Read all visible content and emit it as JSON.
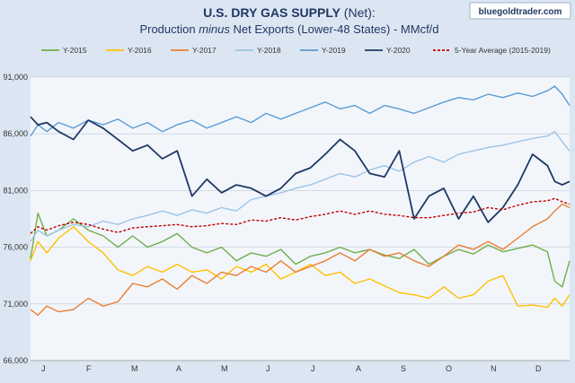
{
  "chart_data": {
    "type": "line",
    "title": "U.S. DRY GAS SUPPLY",
    "title_suffix": " (Net):",
    "subtitle_pre": "Production ",
    "subtitle_em": "minus",
    "subtitle_post": " Net Exports (Lower-48 States) - MMcf/d",
    "brand": "bluegoldtrader.com",
    "ylim": [
      66000,
      91000
    ],
    "yticks": [
      "66,000",
      "71,000",
      "76,000",
      "81,000",
      "86,000",
      "91,000"
    ],
    "ytick_values": [
      66000,
      71000,
      76000,
      81000,
      86000,
      91000
    ],
    "xlabels": [
      "J",
      "F",
      "M",
      "A",
      "M",
      "J",
      "J",
      "A",
      "S",
      "O",
      "N",
      "D"
    ],
    "xlim": [
      1,
      365
    ],
    "grid": true,
    "legend_position": "top",
    "series": [
      {
        "name": "Y-2015",
        "color": "#70ad47",
        "width": 1.4,
        "dash": "",
        "x": [
          1,
          6,
          12,
          20,
          30,
          40,
          50,
          60,
          70,
          80,
          90,
          100,
          110,
          120,
          130,
          140,
          150,
          160,
          170,
          180,
          190,
          200,
          210,
          220,
          230,
          240,
          250,
          260,
          270,
          280,
          290,
          300,
          310,
          320,
          330,
          340,
          350,
          355,
          360,
          365
        ],
        "y": [
          75000,
          79000,
          77000,
          77500,
          78500,
          77500,
          77000,
          76000,
          77000,
          76000,
          76500,
          77200,
          76000,
          75500,
          76000,
          74800,
          75500,
          75200,
          75800,
          74500,
          75200,
          75500,
          76000,
          75500,
          75800,
          75300,
          75000,
          75800,
          74500,
          75200,
          75800,
          75400,
          76200,
          75600,
          75900,
          76200,
          75600,
          73000,
          72500,
          74800
        ]
      },
      {
        "name": "Y-2016",
        "color": "#ffc000",
        "width": 1.4,
        "dash": "",
        "x": [
          1,
          6,
          12,
          20,
          30,
          40,
          50,
          60,
          70,
          80,
          90,
          100,
          110,
          120,
          130,
          140,
          150,
          160,
          170,
          180,
          190,
          200,
          210,
          220,
          230,
          240,
          250,
          260,
          270,
          280,
          290,
          300,
          310,
          320,
          330,
          340,
          350,
          355,
          360,
          365
        ],
        "y": [
          74800,
          76500,
          75500,
          76800,
          77800,
          76500,
          75500,
          74000,
          73500,
          74300,
          73800,
          74500,
          73800,
          74000,
          73200,
          74300,
          73800,
          74500,
          73200,
          73800,
          74500,
          73500,
          73800,
          72800,
          73200,
          72600,
          72000,
          71800,
          71500,
          72500,
          71500,
          71800,
          73000,
          73500,
          70800,
          70900,
          70700,
          71500,
          70800,
          71800
        ]
      },
      {
        "name": "Y-2017",
        "color": "#ed7d31",
        "width": 1.4,
        "dash": "",
        "x": [
          1,
          6,
          12,
          20,
          30,
          40,
          50,
          60,
          70,
          80,
          90,
          100,
          110,
          120,
          130,
          140,
          150,
          160,
          170,
          180,
          190,
          200,
          210,
          220,
          230,
          240,
          250,
          260,
          270,
          280,
          290,
          300,
          310,
          320,
          330,
          340,
          350,
          355,
          360,
          365
        ],
        "y": [
          70500,
          70000,
          70800,
          70300,
          70500,
          71500,
          70800,
          71200,
          72800,
          72500,
          73200,
          72300,
          73500,
          72800,
          73800,
          73500,
          74300,
          73800,
          74800,
          73800,
          74300,
          74800,
          75500,
          74800,
          75800,
          75200,
          75500,
          74800,
          74300,
          75200,
          76200,
          75800,
          76500,
          75800,
          76800,
          77800,
          78500,
          79200,
          79800,
          79500
        ]
      },
      {
        "name": "Y-2018",
        "color": "#9dc3e6",
        "width": 1.4,
        "dash": "",
        "x": [
          1,
          6,
          12,
          20,
          30,
          40,
          50,
          60,
          70,
          80,
          90,
          100,
          110,
          120,
          130,
          140,
          150,
          160,
          170,
          180,
          190,
          200,
          210,
          220,
          230,
          240,
          250,
          260,
          270,
          280,
          290,
          300,
          310,
          320,
          330,
          340,
          350,
          355,
          360,
          365
        ],
        "y": [
          76500,
          77500,
          77000,
          77500,
          78000,
          77800,
          78300,
          78000,
          78500,
          78800,
          79200,
          78800,
          79300,
          79000,
          79500,
          79200,
          80200,
          80500,
          80800,
          81200,
          81500,
          82000,
          82500,
          82200,
          82800,
          83200,
          82700,
          83500,
          84000,
          83500,
          84200,
          84500,
          84800,
          85000,
          85300,
          85600,
          85800,
          86200,
          85300,
          84500
        ]
      },
      {
        "name": "Y-2019",
        "color": "#5b9bd5",
        "width": 1.4,
        "dash": "",
        "x": [
          1,
          6,
          12,
          20,
          30,
          40,
          50,
          60,
          70,
          80,
          90,
          100,
          110,
          120,
          130,
          140,
          150,
          160,
          170,
          180,
          190,
          200,
          210,
          220,
          230,
          240,
          250,
          260,
          270,
          280,
          290,
          300,
          310,
          320,
          330,
          340,
          350,
          355,
          360,
          365
        ],
        "y": [
          85800,
          86800,
          86200,
          87000,
          86500,
          87200,
          86800,
          87300,
          86500,
          87000,
          86200,
          86800,
          87200,
          86500,
          87000,
          87500,
          87000,
          87800,
          87300,
          87800,
          88300,
          88800,
          88200,
          88500,
          87800,
          88500,
          88200,
          87800,
          88300,
          88800,
          89200,
          89000,
          89500,
          89200,
          89600,
          89300,
          89800,
          90200,
          89500,
          88500
        ]
      },
      {
        "name": "Y-2020",
        "color": "#1f3864",
        "width": 1.8,
        "dash": "",
        "x": [
          1,
          6,
          12,
          20,
          30,
          40,
          50,
          60,
          70,
          80,
          90,
          100,
          110,
          120,
          130,
          140,
          150,
          160,
          170,
          180,
          190,
          200,
          210,
          220,
          230,
          240,
          250,
          260,
          270,
          280,
          290,
          300,
          310,
          320,
          330,
          340,
          350,
          355,
          360,
          365
        ],
        "y": [
          87500,
          86800,
          87000,
          86200,
          85500,
          87200,
          86500,
          85500,
          84500,
          85000,
          83800,
          84500,
          80500,
          82000,
          80800,
          81500,
          81200,
          80500,
          81200,
          82500,
          83000,
          84200,
          85500,
          84500,
          82500,
          82200,
          84500,
          78500,
          80500,
          81200,
          78500,
          80500,
          78200,
          79500,
          81500,
          84200,
          83200,
          81800,
          81500,
          81800
        ]
      },
      {
        "name": "5-Year Average (2015-2019)",
        "color": "#c00000",
        "width": 1.4,
        "dash": "3,2",
        "x": [
          1,
          6,
          12,
          20,
          30,
          40,
          50,
          60,
          70,
          80,
          90,
          100,
          110,
          120,
          130,
          140,
          150,
          160,
          170,
          180,
          190,
          200,
          210,
          220,
          230,
          240,
          250,
          260,
          270,
          280,
          290,
          300,
          310,
          320,
          330,
          340,
          350,
          355,
          360,
          365
        ],
        "y": [
          77200,
          77800,
          77500,
          77900,
          78200,
          78000,
          77600,
          77300,
          77700,
          77800,
          77900,
          78000,
          77800,
          77900,
          78100,
          78000,
          78400,
          78300,
          78600,
          78400,
          78700,
          78900,
          79200,
          78900,
          79200,
          78900,
          78800,
          78600,
          78600,
          78800,
          79000,
          79100,
          79500,
          79300,
          79700,
          80000,
          80100,
          80300,
          80000,
          79800
        ]
      }
    ]
  }
}
